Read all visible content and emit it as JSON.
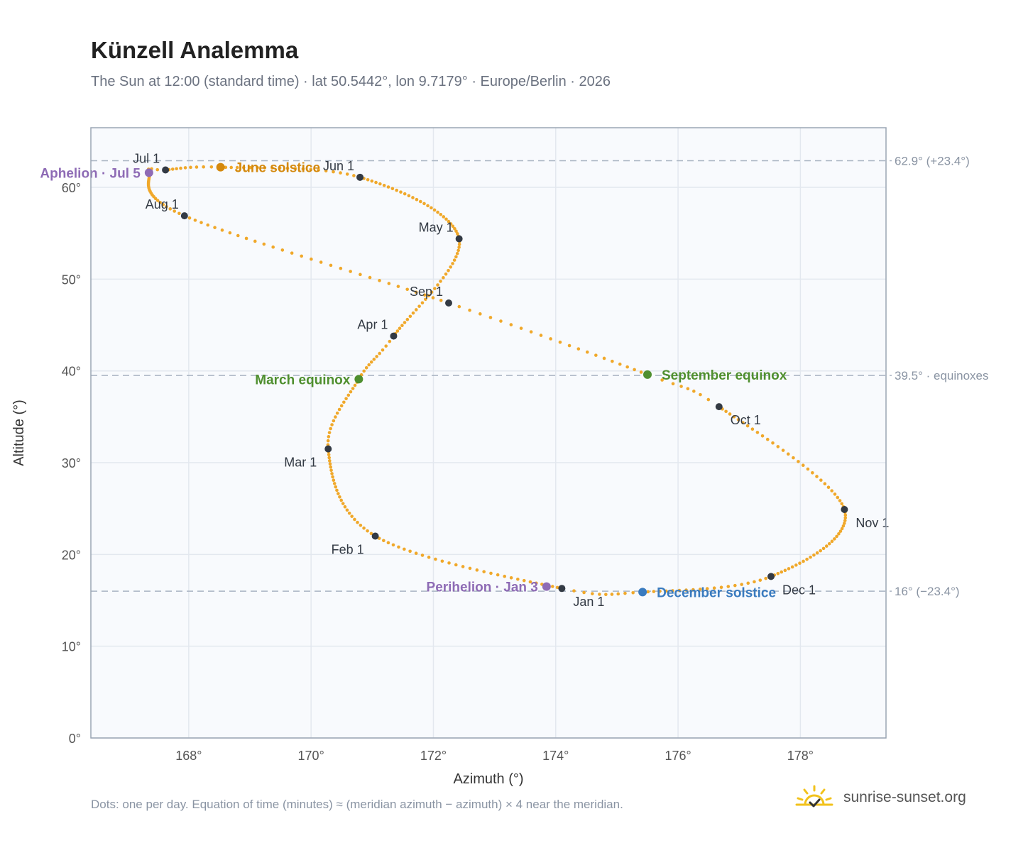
{
  "page": {
    "title": "Künzell Analemma",
    "subtitle": "The Sun at 12:00 (standard time) · lat 50.5442°, lon 9.7179° · Europe/Berlin · 2026",
    "footnote": "Dots: one per day. Equation of time (minutes) ≈ (meridian azimuth − azimuth) × 4 near the meridian.",
    "brand": "sunrise-sunset.org",
    "brand_icon": "sun-check-icon"
  },
  "chart_data": {
    "type": "scatter",
    "xlabel": "Azimuth (°)",
    "ylabel": "Altitude (°)",
    "xlim": [
      166.4,
      179.4
    ],
    "ylim": [
      0,
      66.5
    ],
    "xticks": [
      168,
      170,
      172,
      174,
      176,
      178
    ],
    "xtick_labels": [
      "168°",
      "170°",
      "172°",
      "174°",
      "176°",
      "178°"
    ],
    "yticks": [
      0,
      10,
      20,
      30,
      40,
      50,
      60
    ],
    "ytick_labels": [
      "0°",
      "10°",
      "20°",
      "30°",
      "40°",
      "50°",
      "60°"
    ],
    "grid": true,
    "colors": {
      "path": "#f0a82a",
      "month": "#333a44",
      "solstice_june": "#d4890e",
      "solstice_dec": "#3a7bbf",
      "equinox": "#4f8f2f",
      "apsis": "#8e6bb5",
      "ref_line": "#a9b4c2",
      "plot_bg": "#f8fafd",
      "grid": "#e3e8ef",
      "frame": "#9aa5b4"
    },
    "reference_lines": [
      {
        "y": 62.9,
        "label": "62.9° (+23.4°)"
      },
      {
        "y": 39.5,
        "label": "39.5° · equinoxes"
      },
      {
        "y": 16.0,
        "label": "16° (−23.4°)"
      }
    ],
    "path_points": [
      {
        "day": 1,
        "az": 174.1,
        "alt": 16.3
      },
      {
        "day": 32,
        "az": 171.05,
        "alt": 22.0
      },
      {
        "day": 60,
        "az": 170.28,
        "alt": 31.5
      },
      {
        "day": 79,
        "az": 170.78,
        "alt": 39.1
      },
      {
        "day": 91,
        "az": 171.35,
        "alt": 43.8
      },
      {
        "day": 121,
        "az": 172.42,
        "alt": 54.4
      },
      {
        "day": 152,
        "az": 170.8,
        "alt": 61.1
      },
      {
        "day": 172,
        "az": 168.52,
        "alt": 62.2
      },
      {
        "day": 182,
        "az": 167.62,
        "alt": 61.9
      },
      {
        "day": 186,
        "az": 167.35,
        "alt": 61.6
      },
      {
        "day": 213,
        "az": 167.93,
        "alt": 56.9
      },
      {
        "day": 244,
        "az": 172.25,
        "alt": 47.4
      },
      {
        "day": 266,
        "az": 175.5,
        "alt": 39.6
      },
      {
        "day": 274,
        "az": 176.67,
        "alt": 36.1
      },
      {
        "day": 305,
        "az": 178.72,
        "alt": 24.9
      },
      {
        "day": 335,
        "az": 177.52,
        "alt": 17.6
      },
      {
        "day": 355,
        "az": 175.42,
        "alt": 15.9
      },
      {
        "day": 365,
        "az": 174.1,
        "alt": 16.3
      }
    ],
    "month_markers": [
      {
        "label": "Jan 1",
        "az": 174.1,
        "alt": 16.3,
        "pos": "below-right"
      },
      {
        "label": "Feb 1",
        "az": 171.05,
        "alt": 22.0,
        "pos": "below-left"
      },
      {
        "label": "Mar 1",
        "az": 170.28,
        "alt": 31.5,
        "pos": "below-left"
      },
      {
        "label": "Apr 1",
        "az": 171.35,
        "alt": 43.8,
        "pos": "above-left"
      },
      {
        "label": "May 1",
        "az": 172.42,
        "alt": 54.4,
        "pos": "above-left"
      },
      {
        "label": "Jun 1",
        "az": 170.8,
        "alt": 61.1,
        "pos": "above-left"
      },
      {
        "label": "Jul 1",
        "az": 167.62,
        "alt": 61.9,
        "pos": "above-left"
      },
      {
        "label": "Aug 1",
        "az": 167.93,
        "alt": 56.9,
        "pos": "above-left"
      },
      {
        "label": "Sep 1",
        "az": 172.25,
        "alt": 47.4,
        "pos": "above-left"
      },
      {
        "label": "Oct 1",
        "az": 176.67,
        "alt": 36.1,
        "pos": "below-right"
      },
      {
        "label": "Nov 1",
        "az": 178.72,
        "alt": 24.9,
        "pos": "below-right"
      },
      {
        "label": "Dec 1",
        "az": 177.52,
        "alt": 17.6,
        "pos": "below-right"
      }
    ],
    "events": [
      {
        "label": "June solstice",
        "az": 168.52,
        "alt": 62.2,
        "kind": "solstice_june",
        "side": "right"
      },
      {
        "label": "December solstice",
        "az": 175.42,
        "alt": 15.9,
        "kind": "solstice_dec",
        "side": "right"
      },
      {
        "label": "March equinox",
        "az": 170.78,
        "alt": 39.1,
        "kind": "equinox",
        "side": "left"
      },
      {
        "label": "September equinox",
        "az": 175.5,
        "alt": 39.6,
        "kind": "equinox",
        "side": "right"
      },
      {
        "label": "Aphelion · Jul 5",
        "az": 167.35,
        "alt": 61.6,
        "kind": "apsis",
        "side": "left"
      },
      {
        "label": "Perihelion · Jan 3",
        "az": 173.85,
        "alt": 16.5,
        "kind": "apsis",
        "side": "left"
      }
    ]
  }
}
